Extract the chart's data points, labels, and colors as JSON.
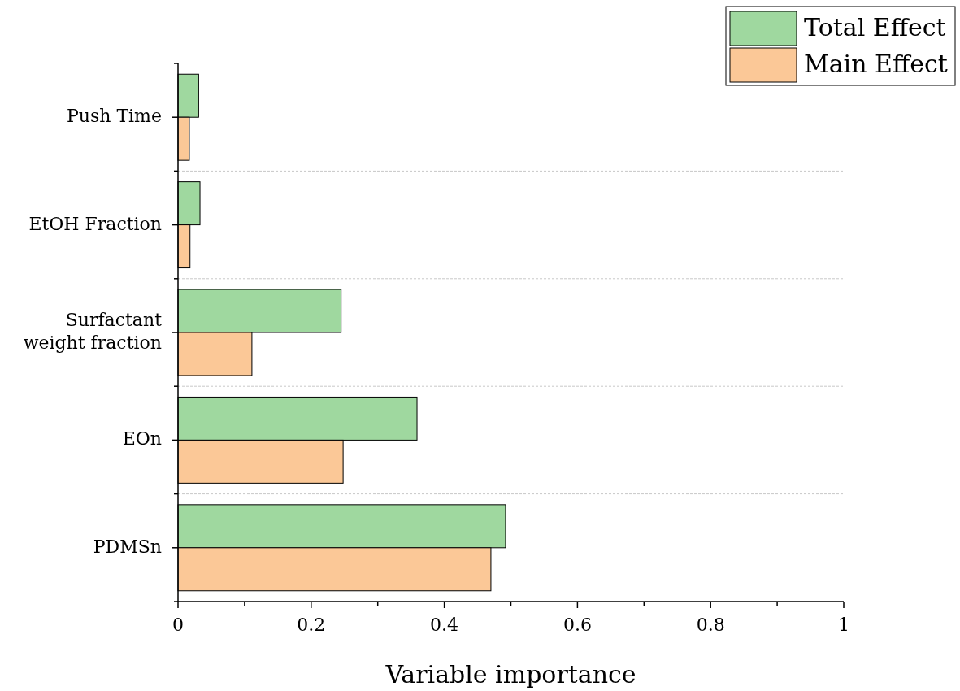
{
  "chart_data": {
    "type": "bar",
    "orientation": "horizontal",
    "xlabel": "Variable importance",
    "categories": [
      "Push Time",
      "EtOH Fraction",
      "Surfactant weight fraction",
      "EOn",
      "PDMSn"
    ],
    "series": [
      {
        "name": "Total Effect",
        "color": "#9fd89f",
        "values": [
          0.031,
          0.033,
          0.245,
          0.359,
          0.492
        ]
      },
      {
        "name": "Main Effect",
        "color": "#fbc897",
        "values": [
          0.017,
          0.018,
          0.111,
          0.248,
          0.47
        ]
      }
    ],
    "xlim": [
      0,
      1
    ],
    "xticks": [
      0,
      0.2,
      0.4,
      0.6,
      0.8,
      1
    ],
    "grid": "y",
    "legend": "top right"
  }
}
